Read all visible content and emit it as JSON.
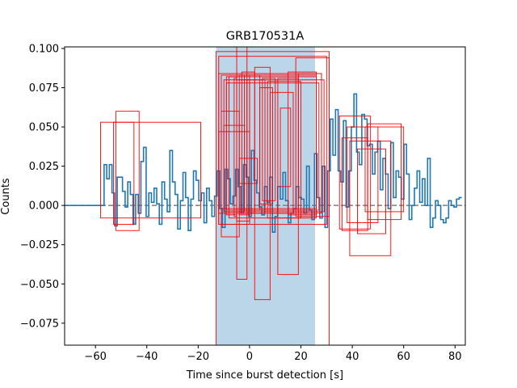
{
  "chart_data": {
    "type": "line",
    "title": "GRB170531A",
    "xlabel": "Time since burst detection [s]",
    "ylabel": "Counts",
    "xlim": [
      -72,
      84
    ],
    "ylim": [
      -0.089,
      0.101
    ],
    "xticks": [
      -60,
      -40,
      -20,
      0,
      20,
      40,
      60,
      80
    ],
    "yticks": [
      -0.075,
      -0.05,
      -0.025,
      0.0,
      0.025,
      0.05,
      0.075,
      0.1
    ],
    "xtick_labels": [
      "−60",
      "−40",
      "−20",
      "0",
      "20",
      "40",
      "60",
      "80"
    ],
    "ytick_labels": [
      "−0.075",
      "−0.050",
      "−0.025",
      "0.000",
      "0.025",
      "0.050",
      "0.075",
      "0.100"
    ],
    "grid": false,
    "colors": {
      "lightcurve": "#1f77b4",
      "zero_line": "#7f7f7f",
      "span": "#1f77b4",
      "boxes": "#ff0000"
    },
    "burst_interval": {
      "start": -13,
      "end": 25.5
    },
    "lightcurve": {
      "bin_width": 1.024,
      "x_start": -72,
      "values": [
        0.0,
        0.0,
        0.0,
        0.0,
        0.0,
        0.0,
        0.0,
        0.0,
        0.0,
        0.0,
        0.0,
        0.0,
        0.0,
        0.0,
        0.0,
        0.026,
        0.017,
        0.026,
        0.008,
        -0.013,
        0.018,
        0.018,
        0.009,
        -0.001,
        0.015,
        0.007,
        -0.012,
        0.007,
        -0.005,
        0.028,
        0.037,
        -0.007,
        0.008,
        0.002,
        0.011,
        0.001,
        -0.012,
        0.015,
        0.004,
        -0.004,
        0.035,
        0.015,
        0.007,
        -0.015,
        0.003,
        0.021,
        0.005,
        -0.016,
        0.004,
        0.022,
        0.016,
        0.003,
        0.008,
        -0.011,
        0.011,
        0.003,
        -0.007,
        0.006,
        0.022,
        -0.002,
        -0.014,
        0.023,
        0.017,
        0.001,
        0.006,
        0.023,
        0.012,
        -0.005,
        0.026,
        0.018,
        -0.007,
        0.035,
        0.016,
        0.008,
        -0.001,
        -0.006,
        0.012,
        0.002,
        0.018,
        -0.017,
        -0.007,
        0.012,
        0.004,
        0.021,
        0.003,
        -0.011,
        -0.005,
        -0.002,
        0.012,
        0.005,
        0.004,
        -0.005,
        0.025,
        -0.003,
        -0.009,
        0.033,
        0.005,
        -0.008,
        0.025,
        -0.014,
        0.022,
        0.055,
        0.032,
        0.061,
        0.022,
        0.015,
        0.054,
        -0.001,
        0.022,
        0.05,
        0.071,
        0.034,
        0.026,
        0.058,
        0.055,
        0.038,
        0.039,
        0.02,
        0.034,
        0.041,
        0.01,
        0.03,
        0.02,
        -0.002,
        0.04,
        0.005,
        0.022,
        0.018,
        0.004,
        0.039,
        0.02,
        -0.009,
        0.0,
        0.011,
        0.022,
        0.002,
        0.017,
        0.0,
        0.03,
        -0.014,
        -0.008,
        0.003,
        0.0,
        -0.009,
        -0.011,
        -0.008,
        0.003,
        0.0,
        -0.001,
        0.004,
        0.005
      ]
    },
    "boxes": [
      {
        "x0": -52,
        "x1": -43,
        "y0": -0.016,
        "y1": 0.06
      },
      {
        "x0": -53,
        "x1": -45,
        "y0": -0.012,
        "y1": 0.053
      },
      {
        "x0": -58,
        "x1": -19,
        "y0": -0.008,
        "y1": 0.053
      },
      {
        "x0": -13,
        "x1": 31,
        "y0": -0.089,
        "y1": 0.098
      },
      {
        "x0": -12,
        "x1": 30,
        "y0": -0.012,
        "y1": 0.095
      },
      {
        "x0": -12,
        "x1": 28,
        "y0": -0.005,
        "y1": 0.084
      },
      {
        "x0": -11,
        "x1": 26,
        "y0": -0.002,
        "y1": 0.083
      },
      {
        "x0": -10,
        "x1": 29,
        "y0": -0.004,
        "y1": 0.08
      },
      {
        "x0": -9,
        "x1": 27,
        "y0": -0.003,
        "y1": 0.078
      },
      {
        "x0": -8,
        "x1": 26,
        "y0": -0.008,
        "y1": 0.082
      },
      {
        "x0": -12,
        "x1": 0,
        "y0": -0.012,
        "y1": 0.047
      },
      {
        "x0": -11,
        "x1": -4,
        "y0": -0.02,
        "y1": 0.06
      },
      {
        "x0": -10,
        "x1": -2,
        "y0": -0.004,
        "y1": 0.051
      },
      {
        "x0": -9,
        "x1": -5,
        "y0": -0.006,
        "y1": 0.082
      },
      {
        "x0": -6,
        "x1": -5,
        "y0": -0.007,
        "y1": 0.081
      },
      {
        "x0": -5,
        "x1": -1,
        "y0": -0.047,
        "y1": 0.105
      },
      {
        "x0": -5,
        "x1": 0,
        "y0": -0.01,
        "y1": 0.08
      },
      {
        "x0": -4,
        "x1": 0,
        "y0": -0.006,
        "y1": 0.083
      },
      {
        "x0": -4,
        "x1": 3,
        "y0": 0.014,
        "y1": 0.03
      },
      {
        "x0": -3,
        "x1": 2,
        "y0": -0.005,
        "y1": 0.085
      },
      {
        "x0": -2,
        "x1": 4,
        "y0": -0.003,
        "y1": 0.083
      },
      {
        "x0": -1,
        "x1": 6,
        "y0": -0.005,
        "y1": 0.08
      },
      {
        "x0": 2,
        "x1": 8,
        "y0": -0.06,
        "y1": 0.088
      },
      {
        "x0": 4,
        "x1": 9,
        "y0": 0.001,
        "y1": 0.075
      },
      {
        "x0": 5,
        "x1": 10,
        "y0": 0.003,
        "y1": 0.081
      },
      {
        "x0": 7,
        "x1": 20,
        "y0": -0.008,
        "y1": 0.079
      },
      {
        "x0": 8,
        "x1": 17,
        "y0": -0.005,
        "y1": 0.072
      },
      {
        "x0": 11,
        "x1": 19,
        "y0": -0.044,
        "y1": 0.081
      },
      {
        "x0": 12,
        "x1": 16,
        "y0": 0.012,
        "y1": 0.062
      },
      {
        "x0": 15,
        "x1": 26,
        "y0": -0.006,
        "y1": 0.085
      },
      {
        "x0": 18,
        "x1": 31,
        "y0": -0.007,
        "y1": 0.094
      },
      {
        "x0": 19,
        "x1": 28,
        "y0": -0.004,
        "y1": 0.084
      },
      {
        "x0": 35,
        "x1": 47,
        "y0": -0.015,
        "y1": 0.057
      },
      {
        "x0": 38,
        "x1": 50,
        "y0": -0.011,
        "y1": 0.05
      },
      {
        "x0": 36,
        "x1": 46,
        "y0": -0.016,
        "y1": 0.043
      },
      {
        "x0": 39,
        "x1": 55,
        "y0": -0.032,
        "y1": 0.041
      },
      {
        "x0": 42,
        "x1": 53,
        "y0": -0.018,
        "y1": 0.036
      },
      {
        "x0": 46,
        "x1": 59,
        "y0": -0.009,
        "y1": 0.052
      },
      {
        "x0": 45,
        "x1": 60,
        "y0": -0.004,
        "y1": 0.05
      }
    ]
  }
}
